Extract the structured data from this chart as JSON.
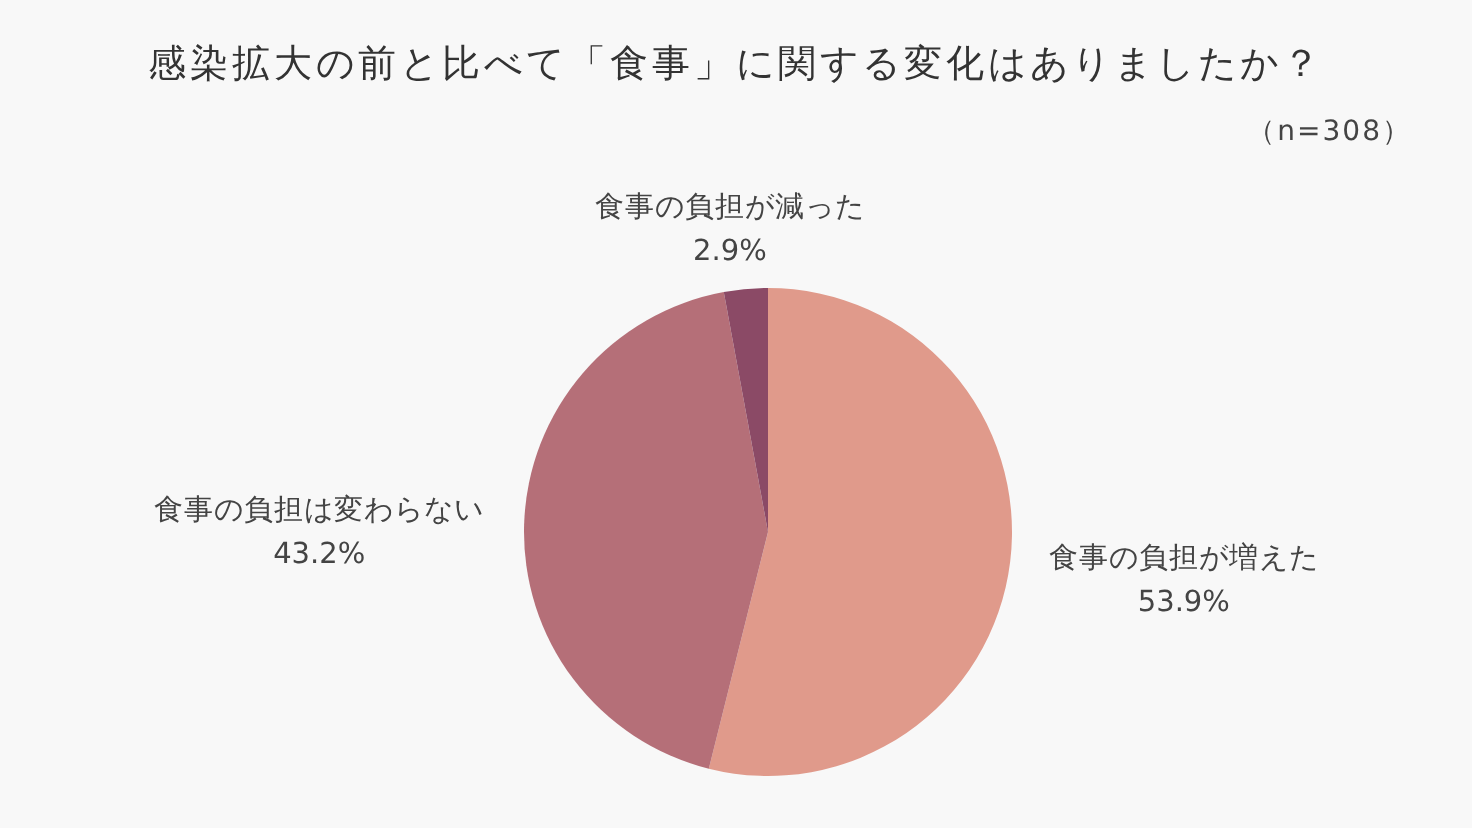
{
  "chart_data": {
    "type": "pie",
    "title": "感染拡大の前と比べて「食事」に関する変化はありましたか？",
    "subtitle": "（n=308）",
    "categories": [
      "食事の負担が増えた",
      "食事の負担は変わらない",
      "食事の負担が減った"
    ],
    "values": [
      53.9,
      43.2,
      2.9
    ],
    "colors": [
      "#e09a8b",
      "#b56f78",
      "#8b4a66"
    ],
    "value_labels": [
      "53.9%",
      "43.2%",
      "2.9%"
    ]
  }
}
